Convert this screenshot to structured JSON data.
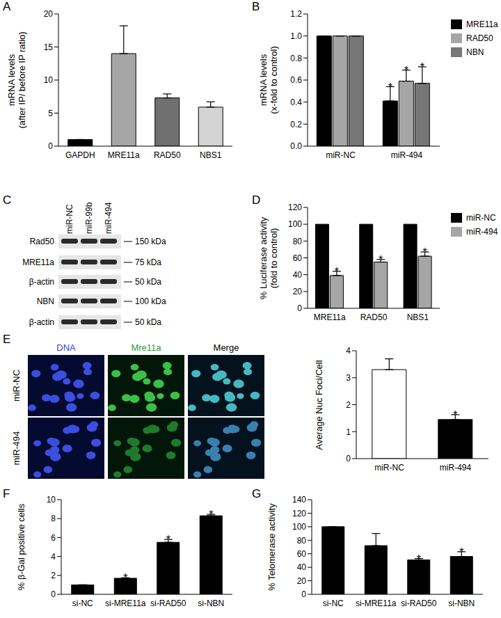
{
  "chart_data": [
    {
      "panel": "A",
      "type": "bar",
      "ylabel": "mRNA levels\n(after IP/ before IP ratio)",
      "categories": [
        "GAPDH",
        "MRE11a",
        "RAD50",
        "NBS1"
      ],
      "values": [
        1,
        14,
        7.3,
        5.9
      ],
      "errors": [
        0,
        4.2,
        0.6,
        0.8
      ],
      "colors": [
        "#000000",
        "#a6a6a6",
        "#707070",
        "#d4d4d4"
      ],
      "ylim": [
        0,
        20
      ],
      "yticks": [
        0,
        5,
        10,
        15,
        20
      ],
      "grid": false
    },
    {
      "panel": "B",
      "type": "bar",
      "ylabel": "mRNA levels\n(x-fold to control)",
      "categories": [
        "miR-NC",
        "miR-494"
      ],
      "series": [
        {
          "name": "MRE11a",
          "color": "#000000",
          "values": [
            1,
            0.41
          ],
          "errors": [
            0,
            0.13
          ],
          "annotations": [
            null,
            "*"
          ]
        },
        {
          "name": "RAD50",
          "color": "#a6a6a6",
          "values": [
            1,
            0.59
          ],
          "errors": [
            0,
            0.1
          ],
          "annotations": [
            null,
            "*"
          ]
        },
        {
          "name": "NBN",
          "color": "#777777",
          "values": [
            1,
            0.57
          ],
          "errors": [
            0,
            0.15
          ],
          "annotations": [
            null,
            "*"
          ]
        }
      ],
      "ylim": [
        0,
        1.2
      ],
      "yticks": [
        {
          "value": 0,
          "label": "0.0"
        },
        {
          "value": 0.2,
          "label": "0.2"
        },
        {
          "value": 0.4,
          "label": "0.4"
        },
        {
          "value": 0.6,
          "label": "0.6"
        },
        {
          "value": 0.8,
          "label": "0.8"
        },
        {
          "value": 1,
          "label": "1.0"
        },
        {
          "value": 1.2,
          "label": "1.2"
        }
      ],
      "legend": "right",
      "grid": false
    },
    {
      "panel": "D",
      "type": "bar",
      "ylabel": "% Luciferase activity\n(fold to control)",
      "categories": [
        "MRE11a",
        "RAD50",
        "NBS1"
      ],
      "series": [
        {
          "name": "miR-NC",
          "color": "#000000",
          "values": [
            100,
            100,
            100
          ]
        },
        {
          "name": "miR-494",
          "color": "#a6a6a6",
          "values": [
            39,
            55,
            62
          ],
          "errors": [
            5,
            3,
            5
          ],
          "annotations": [
            "*",
            "*",
            "*"
          ]
        }
      ],
      "ylim": [
        0,
        120
      ],
      "yticks": [
        0,
        20,
        40,
        60,
        80,
        100,
        120
      ],
      "legend": "right",
      "grid": false
    },
    {
      "type": "bar",
      "ylabel": "Average Nuc Foci/Cell",
      "categories": [
        "miR-NC",
        "miR-494"
      ],
      "values": [
        3.3,
        1.45
      ],
      "errors": [
        0.4,
        0.18
      ],
      "annotations": [
        null,
        "*"
      ],
      "colors": [
        "#ffffff",
        "#000000"
      ],
      "ylim": [
        0,
        4
      ],
      "yticks": [
        0,
        1,
        2,
        3,
        4
      ],
      "grid": false
    },
    {
      "panel": "F",
      "type": "bar",
      "ylabel": "% β-Gal positive cells",
      "categories": [
        "si-NC",
        "si-MRE11a",
        "si-RAD50",
        "si-NBN"
      ],
      "values": [
        1,
        1.7,
        5.5,
        8.3
      ],
      "errors": [
        0,
        0.05,
        0.3,
        0.15
      ],
      "annotations": [
        null,
        "*",
        "*",
        "*"
      ],
      "color": "#000000",
      "ylim": [
        0,
        10
      ],
      "yticks": [
        0,
        2,
        4,
        6,
        8,
        10
      ],
      "grid": false
    },
    {
      "panel": "G",
      "type": "bar",
      "ylabel": "% Telomerase activity",
      "categories": [
        "si-NC",
        "si-MRE11a",
        "si-RAD50",
        "si-NBN"
      ],
      "values": [
        100,
        72,
        51,
        56
      ],
      "errors": [
        0,
        18,
        2,
        7
      ],
      "annotations": [
        null,
        null,
        "*",
        "*"
      ],
      "color": "#000000",
      "ylim": [
        0,
        140
      ],
      "yticks": [
        0,
        20,
        40,
        60,
        80,
        100,
        120,
        140
      ],
      "grid": false
    }
  ],
  "blot": {
    "panel": "C",
    "lanes": [
      "miR-NC",
      "miR-99b",
      "miR-494"
    ],
    "rows": [
      {
        "label": "Rad50",
        "size": "150 kDa"
      },
      {
        "label": "MRE11a",
        "size": "75 kDa"
      },
      {
        "label": "β-actin",
        "size": "50 kDa"
      },
      {
        "label": "NBN",
        "size": "100 kDa"
      },
      {
        "label": "β-actin",
        "size": "50 kDa"
      }
    ]
  },
  "images": {
    "panel": "E",
    "columns": [
      "DNA",
      "Mre11a",
      "Merge"
    ],
    "rows": [
      "miR-NC",
      "miR-494"
    ]
  }
}
